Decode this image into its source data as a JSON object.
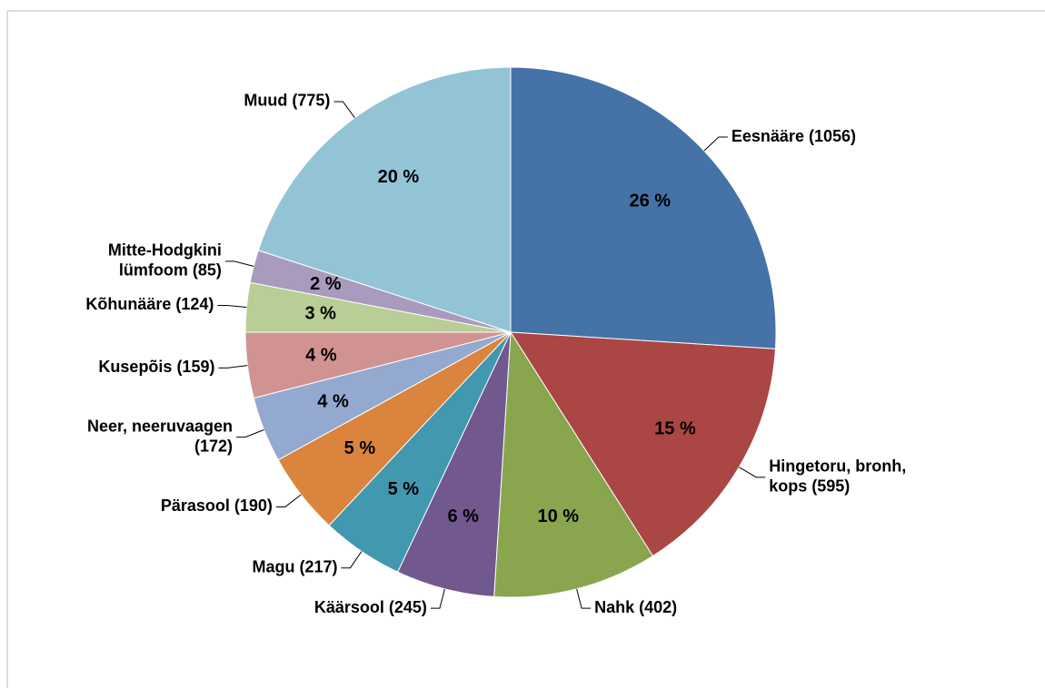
{
  "chart_data": {
    "type": "pie",
    "categories": [
      [
        "Eesnääre (1056)"
      ],
      [
        "Hingetoru, bronh,",
        "kops (595)"
      ],
      [
        "Nahk (402)"
      ],
      [
        "Käärsool (245)"
      ],
      [
        "Magu (217)"
      ],
      [
        "Pärasool (190)"
      ],
      [
        "Neer, neeruvaagen",
        "(172)"
      ],
      [
        "Kusepõis (159)"
      ],
      [
        "Kõhunääre (124)"
      ],
      [
        "Mitte-Hodgkini",
        "lümfoom  (85)"
      ],
      [
        "Muud (775)"
      ]
    ],
    "values": [
      26,
      15,
      10,
      6,
      5,
      5,
      4,
      4,
      3,
      2,
      20
    ],
    "value_labels": [
      "26 %",
      "15 %",
      "10 %",
      "6 %",
      "5 %",
      "5 %",
      "4 %",
      "4 %",
      "3 %",
      "2 %",
      "20 %"
    ],
    "colors": [
      "#4572a7",
      "#aa4643",
      "#89a54e",
      "#71588f",
      "#4198af",
      "#db843d",
      "#93a9cf",
      "#d19392",
      "#b9cd96",
      "#a99bbd",
      "#93c4d6"
    ]
  }
}
